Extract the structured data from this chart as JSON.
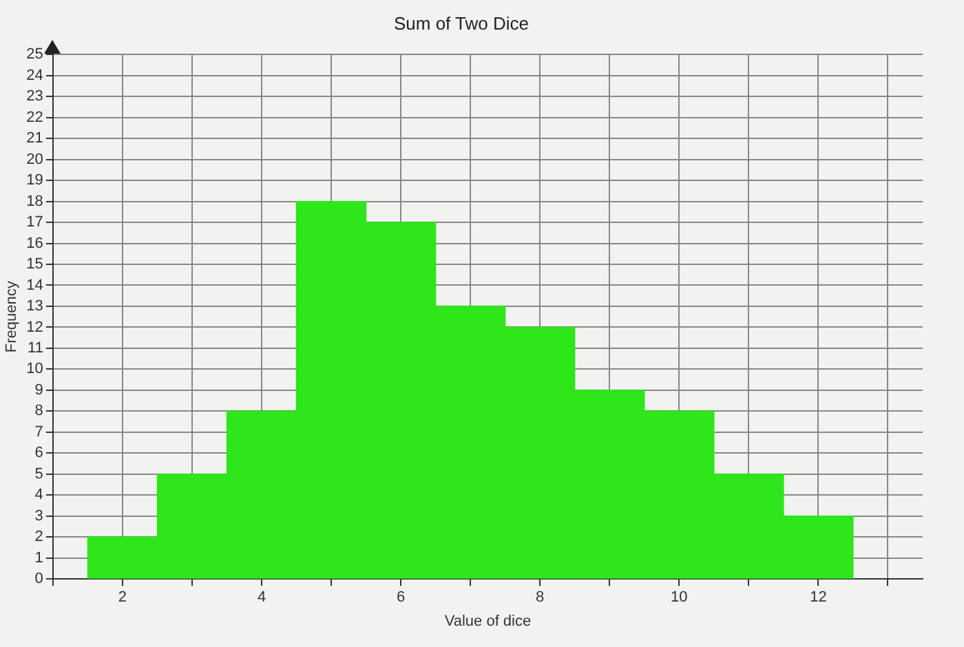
{
  "chart_data": {
    "type": "histogram",
    "title": "Sum of Two Dice",
    "xlabel": "Value of dice",
    "ylabel": "Frequency",
    "bins": [
      1.5,
      2.5,
      3.5,
      4.5,
      5.5,
      6.5,
      7.5,
      8.5,
      9.5,
      10.5,
      11.5,
      12.5
    ],
    "values": [
      2,
      5,
      8,
      18,
      17,
      13,
      12,
      9,
      8,
      5,
      3
    ],
    "color": "#2ee61a",
    "xlim": [
      1,
      13.5
    ],
    "xticks": [
      {
        "value": 1,
        "label": null
      },
      2,
      {
        "value": 3,
        "label": null
      },
      4,
      {
        "value": 5,
        "label": null
      },
      6,
      {
        "value": 7,
        "label": null
      },
      8,
      {
        "value": 9,
        "label": null
      },
      10,
      {
        "value": 11,
        "label": null
      },
      12,
      {
        "value": 13,
        "label": null
      }
    ],
    "ylim": [
      0,
      25
    ],
    "yticks": [
      0,
      1,
      2,
      3,
      4,
      5,
      6,
      7,
      8,
      9,
      10,
      11,
      12,
      13,
      14,
      15,
      16,
      17,
      18,
      19,
      20,
      21,
      22,
      23,
      24,
      25
    ],
    "grid": true
  }
}
